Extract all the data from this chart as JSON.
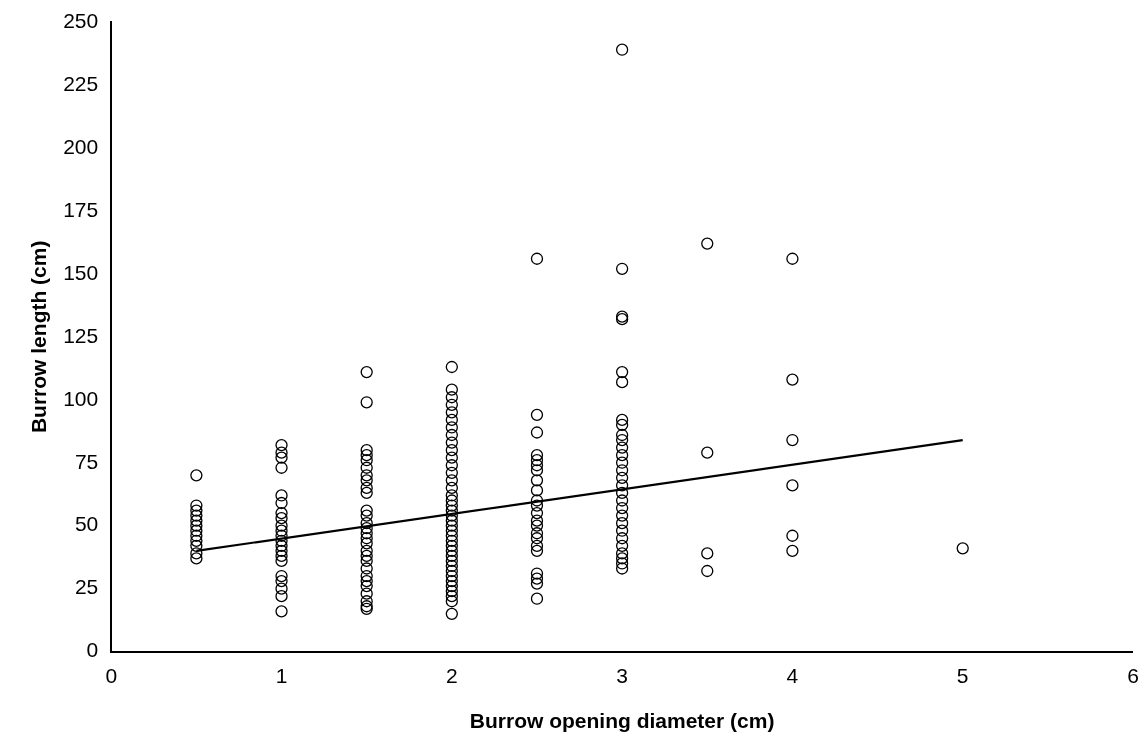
{
  "chart_data": {
    "type": "scatter",
    "xlabel": "Burrow opening diameter (cm)",
    "ylabel": "Burrow length (cm)",
    "xlim": [
      0,
      6
    ],
    "xticks": [
      0,
      1,
      2,
      3,
      4,
      5,
      6
    ],
    "ylim": [
      0,
      250
    ],
    "yticks": [
      0,
      25,
      50,
      75,
      100,
      125,
      150,
      175,
      200,
      225,
      250
    ],
    "grid": false,
    "legend": false,
    "marker": "circle",
    "series": [
      {
        "color": "#000000",
        "x": [
          0.5,
          0.5,
          0.5,
          0.5,
          0.5,
          0.5,
          0.5,
          0.5,
          0.5,
          0.5,
          0.5,
          0.5,
          1,
          1,
          1,
          1,
          1,
          1,
          1,
          1,
          1,
          1,
          1,
          1,
          1,
          1,
          1,
          1,
          1,
          1,
          1,
          1,
          1,
          1.5,
          1.5,
          1.5,
          1.5,
          1.5,
          1.5,
          1.5,
          1.5,
          1.5,
          1.5,
          1.5,
          1.5,
          1.5,
          1.5,
          1.5,
          1.5,
          1.5,
          1.5,
          1.5,
          1.5,
          1.5,
          1.5,
          1.5,
          1.5,
          1.5,
          1.5,
          1.5,
          1.5,
          2,
          2,
          2,
          2,
          2,
          2,
          2,
          2,
          2,
          2,
          2,
          2,
          2,
          2,
          2,
          2,
          2,
          2,
          2,
          2,
          2,
          2,
          2,
          2,
          2,
          2,
          2,
          2,
          2,
          2,
          2,
          2,
          2,
          2,
          2,
          2,
          2,
          2,
          2.5,
          2.5,
          2.5,
          2.5,
          2.5,
          2.5,
          2.5,
          2.5,
          2.5,
          2.5,
          2.5,
          2.5,
          2.5,
          2.5,
          2.5,
          2.5,
          2.5,
          2.5,
          2.5,
          2.5,
          2.5,
          2.5,
          3,
          3,
          3,
          3,
          3,
          3,
          3,
          3,
          3,
          3,
          3,
          3,
          3,
          3,
          3,
          3,
          3,
          3,
          3,
          3,
          3,
          3,
          3,
          3,
          3,
          3,
          3,
          3,
          3.5,
          3.5,
          3.5,
          3.5,
          4,
          4,
          4,
          4,
          4,
          4,
          5
        ],
        "values": [
          70,
          58,
          56,
          54,
          52,
          50,
          48,
          46,
          44,
          42,
          39,
          37,
          82,
          79,
          77,
          73,
          62,
          59,
          55,
          53,
          50,
          48,
          46,
          44,
          42,
          40,
          38,
          36,
          30,
          28,
          25,
          22,
          16,
          111,
          99,
          80,
          78,
          76,
          73,
          70,
          68,
          65,
          63,
          56,
          54,
          51,
          49,
          47,
          45,
          43,
          40,
          38,
          36,
          33,
          30,
          28,
          26,
          23,
          20,
          18,
          17,
          113,
          104,
          101,
          98,
          95,
          92,
          89,
          86,
          83,
          80,
          77,
          74,
          71,
          68,
          65,
          62,
          60,
          58,
          56,
          54,
          52,
          50,
          48,
          46,
          44,
          42,
          40,
          38,
          36,
          34,
          32,
          30,
          28,
          26,
          24,
          22,
          20,
          15,
          156,
          94,
          87,
          78,
          76,
          74,
          72,
          68,
          64,
          60,
          58,
          55,
          52,
          50,
          47,
          45,
          42,
          40,
          31,
          29,
          27,
          21,
          239,
          152,
          133,
          132,
          111,
          107,
          92,
          90,
          86,
          84,
          81,
          78,
          75,
          72,
          69,
          66,
          63,
          60,
          57,
          54,
          51,
          48,
          45,
          42,
          39,
          37,
          35,
          33,
          162,
          79,
          39,
          32,
          156,
          108,
          84,
          66,
          46,
          40,
          41
        ]
      },
      {
        "type": "line",
        "color": "#000000",
        "marker": "none",
        "x": [
          0.5,
          5
        ],
        "values": [
          40,
          84
        ]
      }
    ]
  }
}
